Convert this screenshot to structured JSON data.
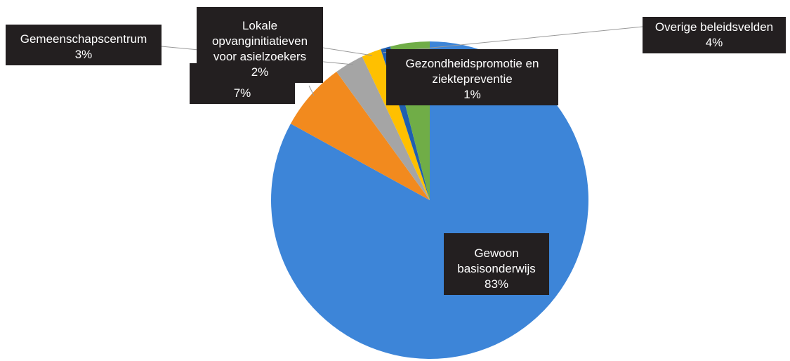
{
  "chart_data": {
    "type": "pie",
    "categories": [
      "Gewoon basisonderwijs",
      null,
      "Gemeenschapscentrum",
      "Lokale opvanginitiatieven voor asielzoekers",
      "Gezondheidspromotie en ziektepreventie",
      "Overige beleidsvelden"
    ],
    "values": [
      83,
      7,
      3,
      2,
      1,
      4
    ],
    "value_labels": [
      "83%",
      "7%",
      "3%",
      "2%",
      "1%",
      "4%"
    ],
    "colors": [
      "#3d85d8",
      "#f28a1e",
      "#a5a5a5",
      "#ffc000",
      "#1f5fb0",
      "#70ad47"
    ]
  }
}
